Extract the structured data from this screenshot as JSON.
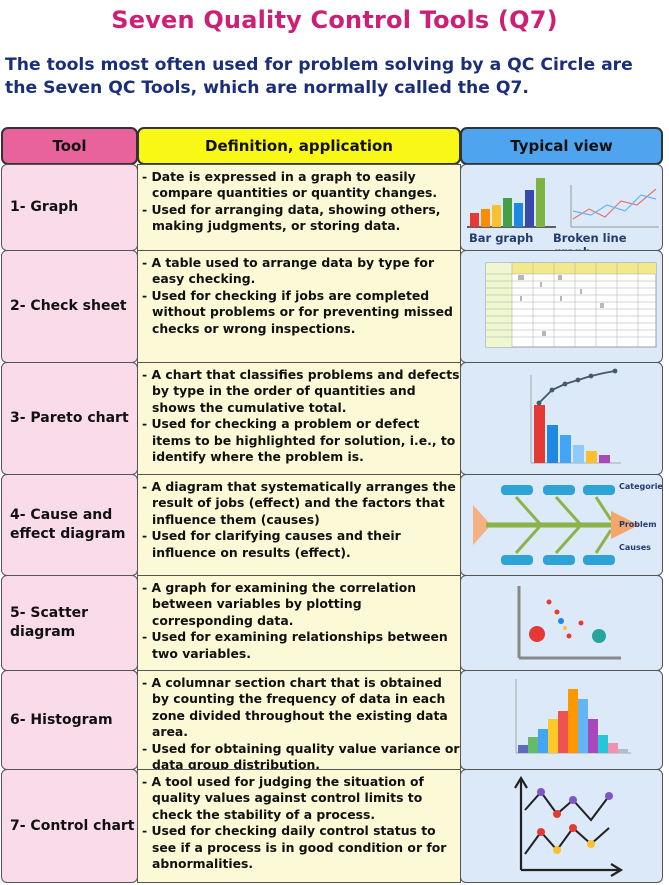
{
  "title": "Seven Quality Control Tools (Q7)",
  "subtitle": "The tools most often used for problem solving by a QC Circle are the Seven QC Tools, which are normally called the Q7.",
  "headers": {
    "tool": "Tool",
    "definition": "Definition, application",
    "view": "Typical view"
  },
  "rows": [
    {
      "tool": "1- Graph",
      "definition": [
        "- Date is expressed in a graph to easily compare quantities or quantity changes.",
        "- Used for arranging data, showing others, making judgments, or storing data."
      ],
      "view_labels": [
        "Bar graph",
        "Broken line graph"
      ]
    },
    {
      "tool": "2- Check sheet",
      "definition": [
        "- A table used to arrange data by type for easy checking.",
        "- Used for checking if jobs are completed without problems or for preventing missed checks or wrong inspections."
      ]
    },
    {
      "tool": "3- Pareto chart",
      "definition": [
        "- A chart that classifies problems and defects by type in the order of quantities and shows the cumulative total.",
        "- Used for checking a problem or defect items to be highlighted for solution, i.e., to identify where the problem is."
      ]
    },
    {
      "tool": "4- Cause and\neffect diagram",
      "definition": [
        "- A diagram that systematically arranges the result of jobs (effect) and the factors that influence them (causes)",
        "- Used for clarifying causes and their influence on results (effect)."
      ],
      "view_labels": [
        "Categories",
        "Problem",
        "Causes"
      ]
    },
    {
      "tool": "5- Scatter\ndiagram",
      "definition": [
        "- A graph for examining the correlation between variables by plotting corresponding data.",
        "- Used for examining relationships between two variables."
      ]
    },
    {
      "tool": "6- Histogram",
      "definition": [
        "- A columnar section chart that is obtained by counting the frequency of data in each zone divided throughout the existing data area.",
        "- Used for obtaining quality value variance or data group distribution."
      ]
    },
    {
      "tool": "7- Control chart",
      "definition": [
        "- A tool used for judging the situation of quality values against control limits to check the stability of a process.",
        "- Used for checking daily control status to see if a process is in good condition or for abnormalities."
      ]
    }
  ],
  "colors": {
    "title": "#cc1f75",
    "subtitle": "#1a2f78",
    "tool_header": "#e8629c",
    "definition_header": "#f8f716",
    "view_header": "#4ea4ee"
  }
}
